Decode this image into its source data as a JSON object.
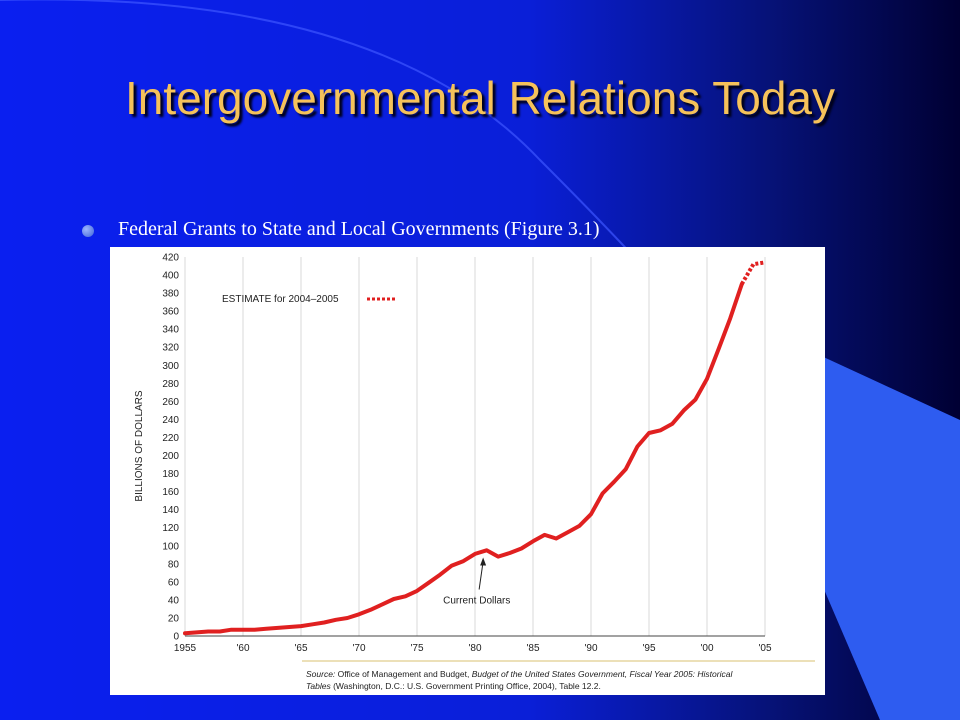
{
  "slide": {
    "title": "Intergovernmental Relations Today",
    "bullet": "Federal Grants to State and Local Governments (Figure 3.1)",
    "colors": {
      "bg_blue": "#0b21e6",
      "bg_dark": "#000033",
      "title": "#f6c25a",
      "accent_band": "#2e5cf0"
    }
  },
  "chart_data": {
    "type": "line",
    "ylabel": "BILLIONS OF DOLLARS",
    "xlabel": "",
    "xlim": [
      1955,
      2005
    ],
    "ylim": [
      0,
      420
    ],
    "y_ticks": [
      0,
      20,
      40,
      60,
      80,
      100,
      120,
      140,
      160,
      180,
      200,
      220,
      240,
      260,
      280,
      300,
      320,
      340,
      360,
      380,
      400,
      420
    ],
    "x_ticks": [
      1955,
      1960,
      1965,
      1970,
      1975,
      1980,
      1985,
      1990,
      1995,
      2000,
      2005
    ],
    "x_tick_labels": [
      "1955",
      "'60",
      "'65",
      "'70",
      "'75",
      "'80",
      "'85",
      "'90",
      "'95",
      "'00",
      "'05"
    ],
    "grid": "vertical",
    "legend_text": "ESTIMATE for 2004–2005",
    "annotation": "Current Dollars",
    "annotation_point": [
      1980.7,
      87
    ],
    "series": [
      {
        "style": "solid",
        "x": [
          1955,
          1956,
          1957,
          1958,
          1959,
          1960,
          1961,
          1962,
          1963,
          1964,
          1965,
          1966,
          1967,
          1968,
          1969,
          1970,
          1971,
          1972,
          1973,
          1974,
          1975,
          1976,
          1977,
          1978,
          1979,
          1980,
          1981,
          1982,
          1983,
          1984,
          1985,
          1986,
          1987,
          1988,
          1989,
          1990,
          1991,
          1992,
          1993,
          1994,
          1995,
          1996,
          1997,
          1998,
          1999,
          2000,
          2001,
          2002,
          2003
        ],
        "y": [
          3,
          4,
          5,
          5,
          7,
          7,
          7,
          8,
          9,
          10,
          11,
          13,
          15,
          18,
          20,
          24,
          29,
          35,
          41,
          44,
          50,
          59,
          68,
          78,
          83,
          91,
          95,
          88,
          92,
          97,
          105,
          112,
          108,
          115,
          122,
          135,
          158,
          171,
          185,
          210,
          225,
          228,
          235,
          250,
          262,
          285,
          318,
          352,
          390
        ]
      },
      {
        "style": "dotted",
        "label": "ESTIMATE for 2004–2005",
        "x": [
          2003,
          2004,
          2005
        ],
        "y": [
          390,
          412,
          414
        ]
      }
    ],
    "source_lines": [
      [
        "Source:",
        " Office of Management and Budget, ",
        "Budget of the United States Government, Fiscal Year 2005: Historical"
      ],
      [
        "Tables",
        " (Washington, D.C.: U.S. Government Printing Office, 2004), Table 12.2.",
        ""
      ]
    ]
  }
}
